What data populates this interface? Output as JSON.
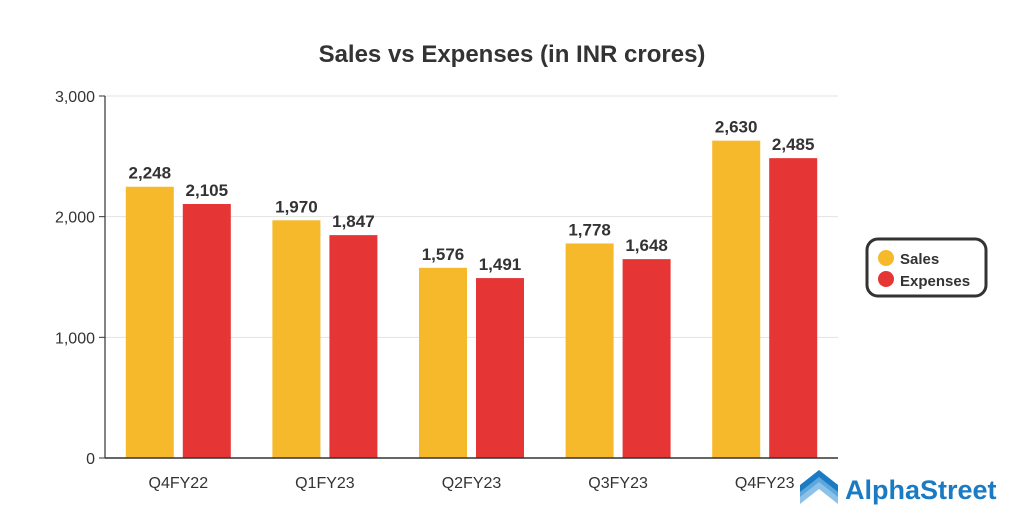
{
  "chart_data": {
    "type": "bar",
    "title": "Sales vs Expenses (in INR crores)",
    "xlabel": "",
    "ylabel": "",
    "categories": [
      "Q4FY22",
      "Q1FY23",
      "Q2FY23",
      "Q3FY23",
      "Q4FY23"
    ],
    "series": [
      {
        "name": "Sales",
        "color": "#f6b92b",
        "values": [
          2248,
          1970,
          1576,
          1778,
          2630
        ],
        "labels": [
          "2,248",
          "1,970",
          "1,576",
          "1,778",
          "2,630"
        ]
      },
      {
        "name": "Expenses",
        "color": "#e53535",
        "values": [
          2105,
          1847,
          1491,
          1648,
          2485
        ],
        "labels": [
          "2,105",
          "1,847",
          "1,491",
          "1,648",
          "2,485"
        ]
      }
    ],
    "ylim": [
      0,
      3000
    ],
    "yticks": [
      0,
      1000,
      2000,
      3000
    ],
    "ytick_labels": [
      "0",
      "1,000",
      "2,000",
      "3,000"
    ],
    "grid": true,
    "legend_position": "right"
  },
  "branding": {
    "logo_text": "AlphaStreet",
    "logo_color": "#1a7bc4"
  }
}
